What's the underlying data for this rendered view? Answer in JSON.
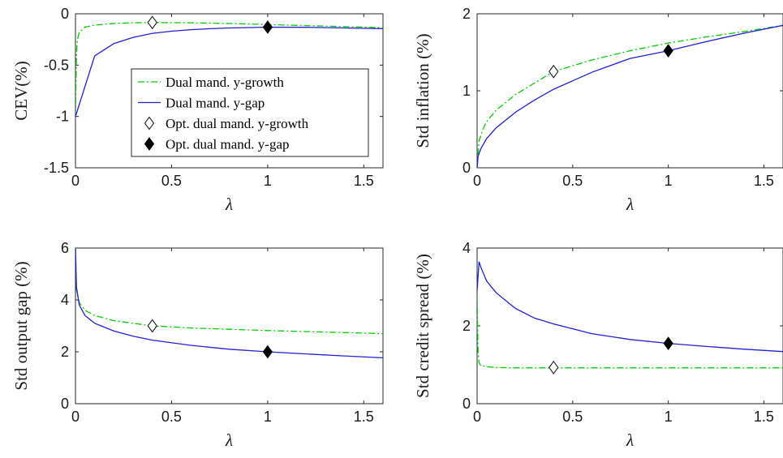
{
  "chart_data": [
    {
      "type": "line",
      "id": "cev",
      "xlabel": "λ",
      "ylabel": "CEV(%)",
      "xlim": [
        0,
        1.6
      ],
      "ylim": [
        -1.5,
        0
      ],
      "xticks": [
        "0",
        "0.5",
        "1",
        "1.5"
      ],
      "yticks": [
        "-1.5",
        "-1",
        "-0.5",
        "0"
      ],
      "series": [
        {
          "name": "Dual mand. y-growth",
          "style": "dashdot",
          "color": "#00cc00",
          "x": [
            0,
            0.005,
            0.01,
            0.02,
            0.05,
            0.1,
            0.2,
            0.3,
            0.4,
            0.6,
            0.8,
            1.0,
            1.2,
            1.4,
            1.6
          ],
          "y": [
            -1.0,
            -0.4,
            -0.25,
            -0.18,
            -0.13,
            -0.11,
            -0.095,
            -0.088,
            -0.085,
            -0.088,
            -0.095,
            -0.105,
            -0.115,
            -0.125,
            -0.135
          ]
        },
        {
          "name": "Dual mand. y-gap",
          "style": "solid",
          "color": "#1f1fd6",
          "x": [
            0,
            0.1,
            0.2,
            0.3,
            0.4,
            0.5,
            0.6,
            0.7,
            0.8,
            0.9,
            1.0,
            1.2,
            1.4,
            1.6
          ],
          "y": [
            -1.0,
            -0.41,
            -0.29,
            -0.23,
            -0.19,
            -0.17,
            -0.155,
            -0.145,
            -0.138,
            -0.134,
            -0.13,
            -0.132,
            -0.138,
            -0.145
          ]
        }
      ],
      "markers": [
        {
          "name": "Opt. dual mand. y-growth",
          "x": 0.4,
          "y": -0.085,
          "filled": false
        },
        {
          "name": "Opt. dual mand. y-gap",
          "x": 1.0,
          "y": -0.13,
          "filled": true
        }
      ],
      "legend": {
        "position": "center-left",
        "entries": [
          {
            "label": "Dual mand. y-growth",
            "kind": "dashdot",
            "color": "#00cc00"
          },
          {
            "label": "Dual mand. y-gap",
            "kind": "solid",
            "color": "#1f1fd6"
          },
          {
            "label": "Opt. dual mand. y-growth",
            "kind": "open-diamond",
            "color": "#000000"
          },
          {
            "label": "Opt. dual mand. y-gap",
            "kind": "filled-diamond",
            "color": "#000000"
          }
        ]
      }
    },
    {
      "type": "line",
      "id": "inflation",
      "xlabel": "λ",
      "ylabel": "Std inflation (%)",
      "xlim": [
        0,
        1.6
      ],
      "ylim": [
        0,
        2
      ],
      "xticks": [
        "0",
        "0.5",
        "1",
        "1.5"
      ],
      "yticks": [
        "0",
        "1",
        "2"
      ],
      "series": [
        {
          "name": "Dual mand. y-growth",
          "style": "dashdot",
          "color": "#00cc00",
          "x": [
            0,
            0.01,
            0.03,
            0.05,
            0.1,
            0.2,
            0.3,
            0.4,
            0.6,
            0.8,
            1.0,
            1.2,
            1.4,
            1.6
          ],
          "y": [
            0,
            0.35,
            0.5,
            0.6,
            0.75,
            0.95,
            1.1,
            1.25,
            1.4,
            1.52,
            1.62,
            1.7,
            1.77,
            1.85
          ]
        },
        {
          "name": "Dual mand. y-gap",
          "style": "solid",
          "color": "#1f1fd6",
          "x": [
            0,
            0.005,
            0.02,
            0.05,
            0.1,
            0.2,
            0.3,
            0.4,
            0.5,
            0.6,
            0.8,
            1.0,
            1.2,
            1.4,
            1.6
          ],
          "y": [
            0,
            0.15,
            0.25,
            0.38,
            0.52,
            0.72,
            0.88,
            1.02,
            1.13,
            1.24,
            1.42,
            1.52,
            1.64,
            1.75,
            1.85
          ]
        }
      ],
      "markers": [
        {
          "name": "Opt. dual mand. y-growth",
          "x": 0.4,
          "y": 1.25,
          "filled": false
        },
        {
          "name": "Opt. dual mand. y-gap",
          "x": 1.0,
          "y": 1.52,
          "filled": true
        }
      ]
    },
    {
      "type": "line",
      "id": "outputgap",
      "xlabel": "λ",
      "ylabel": "Std output gap (%)",
      "xlim": [
        0,
        1.6
      ],
      "ylim": [
        0,
        6
      ],
      "xticks": [
        "0",
        "0.5",
        "1",
        "1.5"
      ],
      "yticks": [
        "0",
        "2",
        "4",
        "6"
      ],
      "series": [
        {
          "name": "Dual mand. y-growth",
          "style": "dashdot",
          "color": "#00cc00",
          "x": [
            0,
            0.005,
            0.02,
            0.05,
            0.1,
            0.2,
            0.3,
            0.4,
            0.6,
            0.8,
            1.0,
            1.2,
            1.4,
            1.6
          ],
          "y": [
            6.0,
            4.4,
            3.9,
            3.6,
            3.4,
            3.2,
            3.1,
            3.0,
            2.92,
            2.87,
            2.82,
            2.78,
            2.74,
            2.7
          ]
        },
        {
          "name": "Dual mand. y-gap",
          "style": "solid",
          "color": "#1f1fd6",
          "x": [
            0,
            0.005,
            0.02,
            0.05,
            0.1,
            0.2,
            0.3,
            0.4,
            0.6,
            0.8,
            1.0,
            1.2,
            1.4,
            1.6
          ],
          "y": [
            6.0,
            4.5,
            3.8,
            3.4,
            3.1,
            2.8,
            2.6,
            2.45,
            2.25,
            2.1,
            2.0,
            1.92,
            1.84,
            1.77
          ]
        }
      ],
      "markers": [
        {
          "name": "Opt. dual mand. y-growth",
          "x": 0.4,
          "y": 3.0,
          "filled": false
        },
        {
          "name": "Opt. dual mand. y-gap",
          "x": 1.0,
          "y": 2.0,
          "filled": true
        }
      ]
    },
    {
      "type": "line",
      "id": "creditspread",
      "xlabel": "λ",
      "ylabel": "Std credit spread (%)",
      "xlim": [
        0,
        1.6
      ],
      "ylim": [
        0,
        4
      ],
      "xticks": [
        "0",
        "0.5",
        "1",
        "1.5"
      ],
      "yticks": [
        "0",
        "2",
        "4"
      ],
      "series": [
        {
          "name": "Dual mand. y-growth",
          "style": "dashdot",
          "color": "#00cc00",
          "x": [
            0,
            0.005,
            0.01,
            0.02,
            0.05,
            0.1,
            0.2,
            0.4,
            0.8,
            1.2,
            1.6
          ],
          "y": [
            2.8,
            1.3,
            1.05,
            0.98,
            0.95,
            0.93,
            0.92,
            0.92,
            0.92,
            0.92,
            0.92
          ]
        },
        {
          "name": "Dual mand. y-gap",
          "style": "solid",
          "color": "#1f1fd6",
          "x": [
            0,
            0.01,
            0.02,
            0.05,
            0.1,
            0.2,
            0.3,
            0.4,
            0.6,
            0.8,
            1.0,
            1.2,
            1.4,
            1.6
          ],
          "y": [
            2.9,
            3.65,
            3.5,
            3.15,
            2.85,
            2.45,
            2.2,
            2.05,
            1.8,
            1.65,
            1.55,
            1.47,
            1.4,
            1.34
          ]
        }
      ],
      "markers": [
        {
          "name": "Opt. dual mand. y-growth",
          "x": 0.4,
          "y": 0.93,
          "filled": false
        },
        {
          "name": "Opt. dual mand. y-gap",
          "x": 1.0,
          "y": 1.55,
          "filled": true
        }
      ]
    }
  ]
}
